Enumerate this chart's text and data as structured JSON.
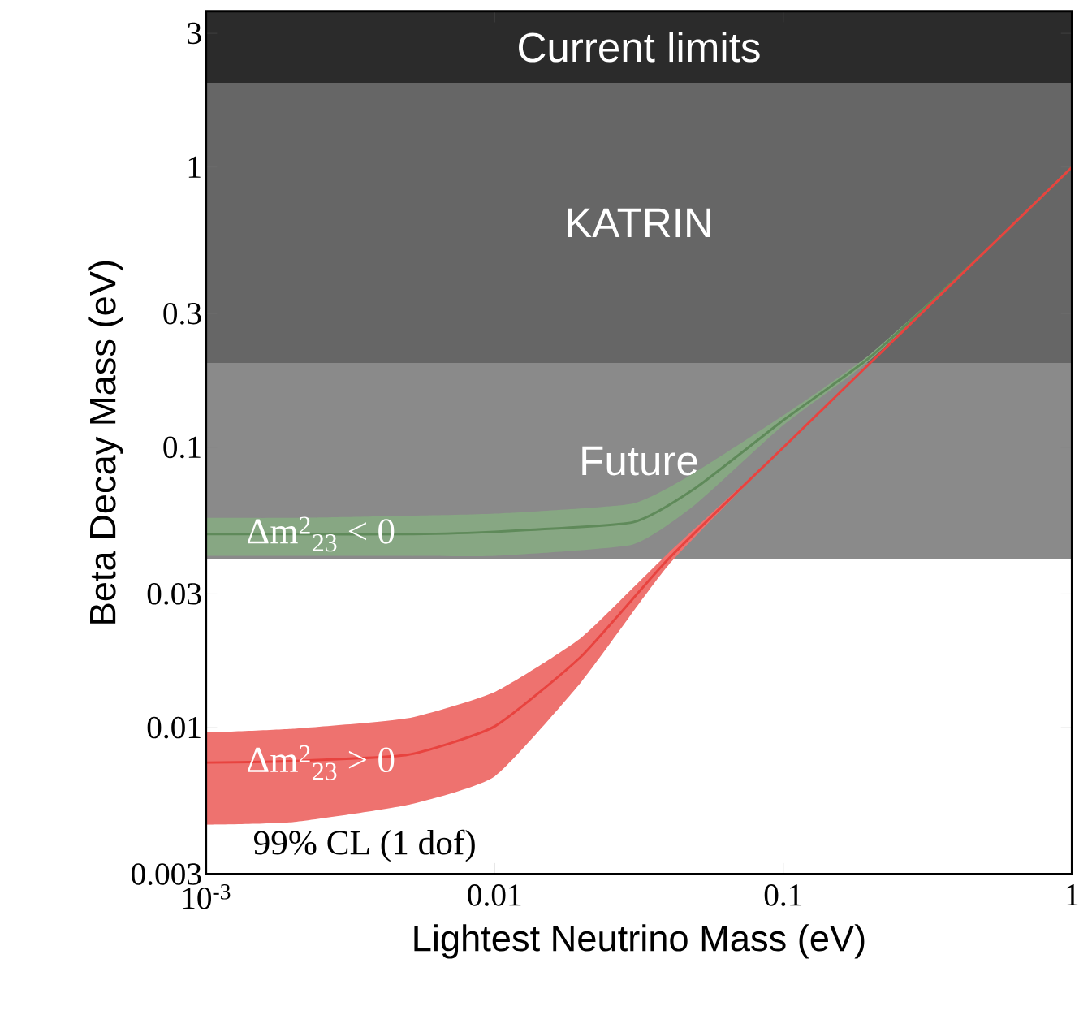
{
  "chart_data": {
    "type": "line",
    "xlabel": "Lightest Neutrino Mass (eV)",
    "ylabel": "Beta Decay Mass (eV)",
    "log": "xy",
    "xlim": [
      0.001,
      1
    ],
    "ylim": [
      0.003,
      3.6
    ],
    "xticks": [
      {
        "value": 0.001,
        "label": "10$^{-3}$"
      },
      0.01,
      0.1,
      1
    ],
    "yticks": [
      0.003,
      0.01,
      0.03,
      0.1,
      0.3,
      1,
      3
    ],
    "series": [
      {
        "color": "#5f8a5a",
        "x": [
          0.001,
          0.002,
          0.005,
          0.01,
          0.03,
          0.05,
          0.1,
          0.2,
          0.5,
          1
        ],
        "values": [
          0.049,
          0.049,
          0.049,
          0.05,
          0.054,
          0.072,
          0.125,
          0.21,
          0.5,
          1
        ],
        "lower": [
          0.041,
          0.041,
          0.041,
          0.041,
          0.045,
          0.063,
          0.12,
          0.205,
          0.5,
          1
        ],
        "upper": [
          0.056,
          0.056,
          0.057,
          0.058,
          0.063,
          0.082,
          0.13,
          0.215,
          0.5,
          1
        ]
      },
      {
        "color": "#e8433f",
        "x": [
          0.001,
          0.002,
          0.005,
          0.01,
          0.02,
          0.04,
          0.1,
          0.2,
          0.5,
          1
        ],
        "values": [
          0.0075,
          0.0076,
          0.008,
          0.0101,
          0.018,
          0.04,
          0.1,
          0.2,
          0.5,
          1
        ],
        "lower": [
          0.0045,
          0.0046,
          0.0053,
          0.0067,
          0.0146,
          0.038,
          0.1,
          0.2,
          0.5,
          1
        ],
        "upper": [
          0.0096,
          0.0099,
          0.0108,
          0.0134,
          0.021,
          0.042,
          0.1,
          0.2,
          0.5,
          1
        ]
      }
    ],
    "bands": [
      {
        "axis": "y",
        "from": 2,
        "to": 3.6,
        "label": "Current limits",
        "color": "#2b2b2b"
      },
      {
        "axis": "y",
        "from": 0.2,
        "to": 2,
        "label": "KATRIN",
        "color": "#666666"
      },
      {
        "axis": "y",
        "from": 0.04,
        "to": 0.2,
        "label": "Future",
        "color": "#8a8a8a"
      }
    ],
    "annotations": [
      {
        "text": "Δm$^{2}$$_{23}$ < 0",
        "x": 0.0025,
        "y": 0.049
      },
      {
        "text": "Δm$^{2}$$_{23}$ > 0",
        "x": 0.0025,
        "y": 0.0075
      },
      "99% CL (1 dof)"
    ]
  }
}
